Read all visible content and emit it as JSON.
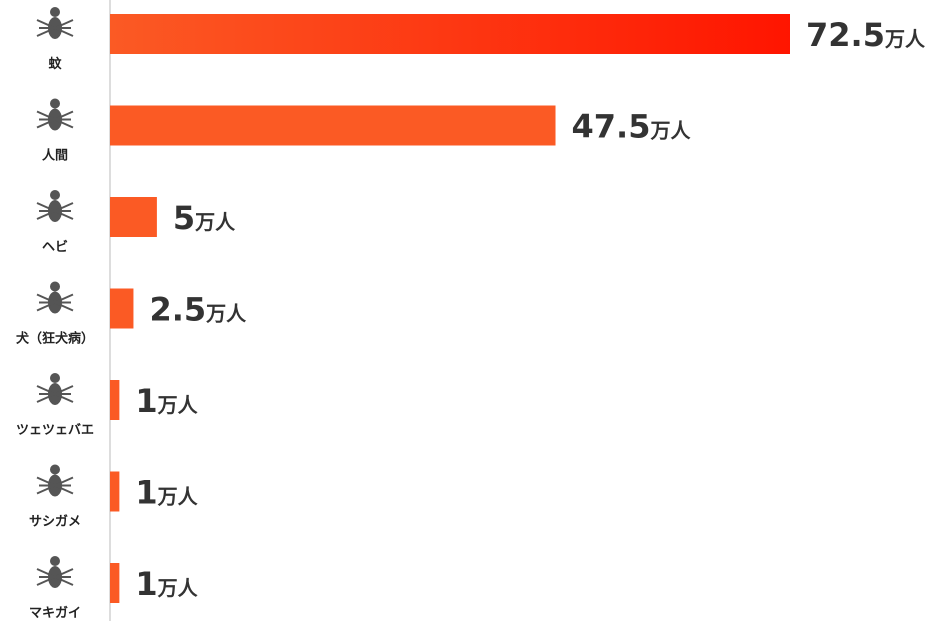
{
  "chart_data": {
    "type": "bar",
    "orientation": "horizontal",
    "categories": [
      "蚊",
      "人間",
      "ヘビ",
      "犬（狂犬病）",
      "ツェツェバエ",
      "サシガメ",
      "マキガイ"
    ],
    "values": [
      72.5,
      47.5,
      5,
      2.5,
      1,
      1,
      1
    ],
    "value_labels": [
      "72.5万人",
      "47.5万人",
      "5万人",
      "2.5万人",
      "1万人",
      "1万人",
      "1万人"
    ],
    "color": "#fb5a24",
    "highlight_color": "#ff1500"
  }
}
